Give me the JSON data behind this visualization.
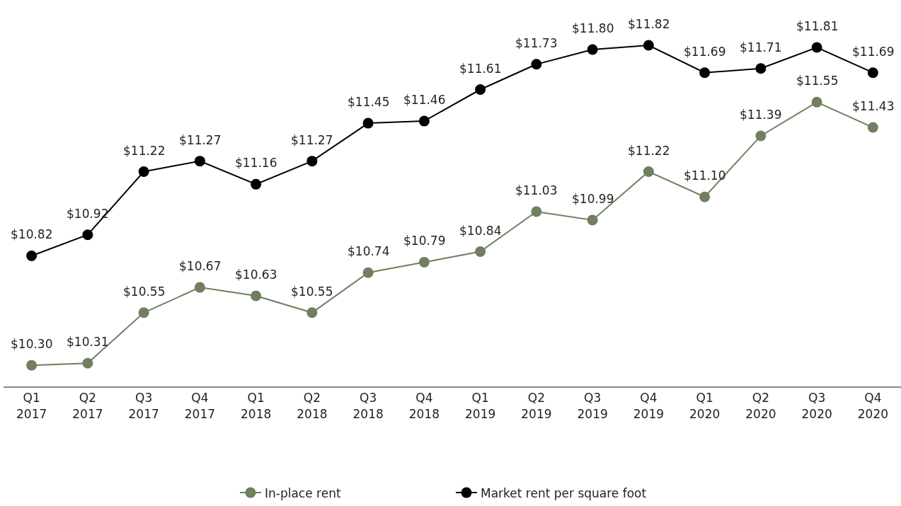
{
  "chart_data": {
    "type": "line",
    "categories": [
      "Q1\n2017",
      "Q2\n2017",
      "Q3\n2017",
      "Q4\n2017",
      "Q1\n2018",
      "Q2\n2018",
      "Q3\n2018",
      "Q4\n2018",
      "Q1\n2019",
      "Q2\n2019",
      "Q3\n2019",
      "Q4\n2019",
      "Q1\n2020",
      "Q2\n2020",
      "Q3\n2020",
      "Q4\n2020"
    ],
    "series": [
      {
        "name": "In-place rent",
        "color": "#6f7f5f",
        "values": [
          10.3,
          10.31,
          10.55,
          10.67,
          10.63,
          10.55,
          10.74,
          10.79,
          10.84,
          11.03,
          10.99,
          11.22,
          11.1,
          11.39,
          11.55,
          11.43
        ],
        "value_labels": [
          "$10.30",
          "$10.31",
          "$10.55",
          "$10.67",
          "$10.63",
          "$10.55",
          "$10.74",
          "$10.79",
          "$10.84",
          "$11.03",
          "$10.99",
          "$11.22",
          "$11.10",
          "$11.39",
          "$11.55",
          "$11.43"
        ]
      },
      {
        "name": "Market rent per square foot",
        "color": "#000000",
        "values": [
          10.82,
          10.92,
          11.22,
          11.27,
          11.16,
          11.27,
          11.45,
          11.46,
          11.61,
          11.73,
          11.8,
          11.82,
          11.69,
          11.71,
          11.81,
          11.69
        ],
        "value_labels": [
          "$10.82",
          "$10.92",
          "$11.22",
          "$11.27",
          "$11.16",
          "$11.27",
          "$11.45",
          "$11.46",
          "$11.61",
          "$11.73",
          "$11.80",
          "$11.82",
          "$11.69",
          "$11.71",
          "$11.81",
          "$11.69"
        ]
      }
    ],
    "marker": "circle",
    "line_style": "solid",
    "legend": "bottom",
    "tick_labels": "x"
  }
}
